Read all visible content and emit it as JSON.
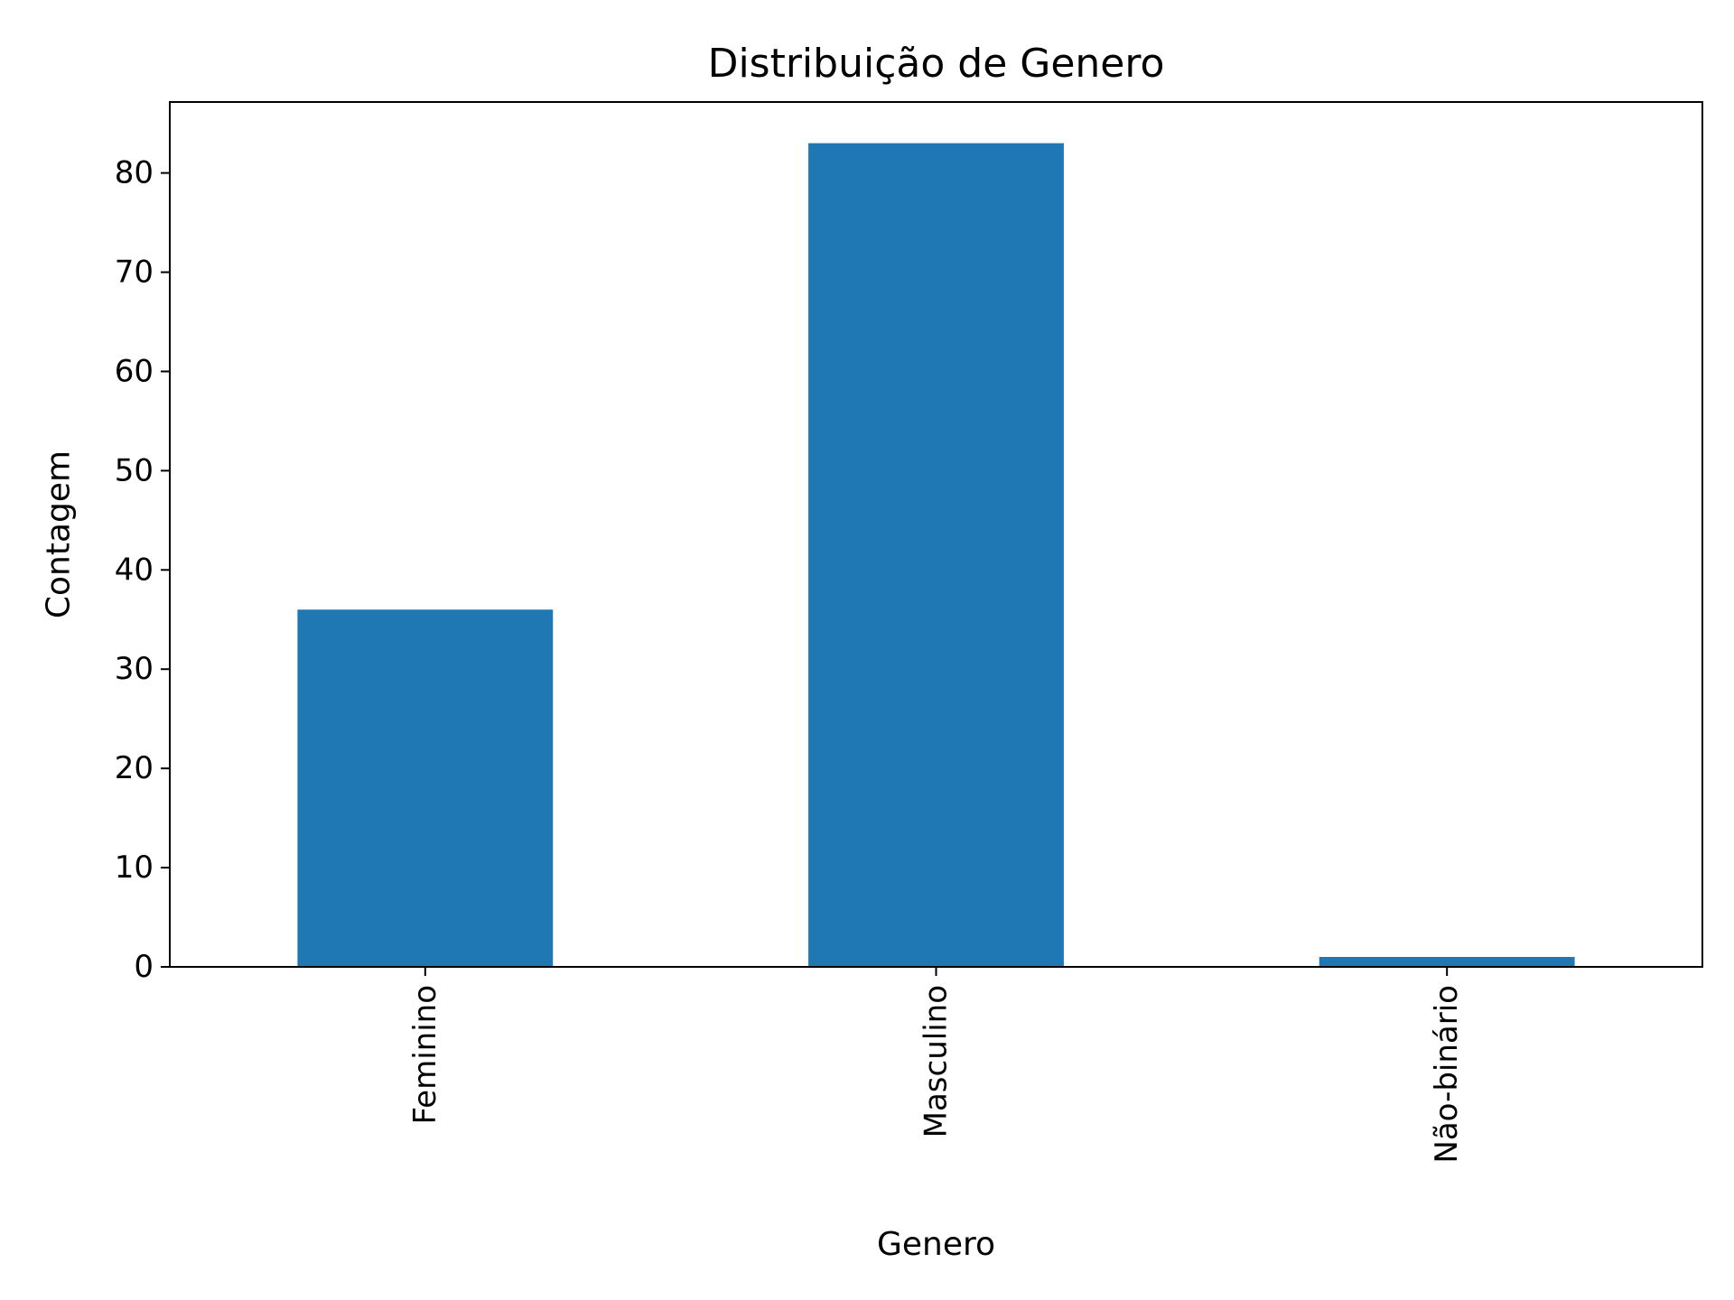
{
  "chart_data": {
    "type": "bar",
    "title": "Distribuição de Genero",
    "xlabel": "Genero",
    "ylabel": "Contagem",
    "categories": [
      "Feminino",
      "Masculino",
      "Não-binário"
    ],
    "values": [
      36,
      83,
      1
    ],
    "ylim": [
      0,
      87.15
    ],
    "yticks": [
      0,
      10,
      20,
      30,
      40,
      50,
      60,
      70,
      80
    ],
    "yticklabels": [
      "0",
      "10",
      "20",
      "30",
      "40",
      "50",
      "60",
      "70",
      "80"
    ],
    "grid": false,
    "legend": "none",
    "bar_color": "#1f77b4",
    "xtick_rotation": "vertical"
  }
}
